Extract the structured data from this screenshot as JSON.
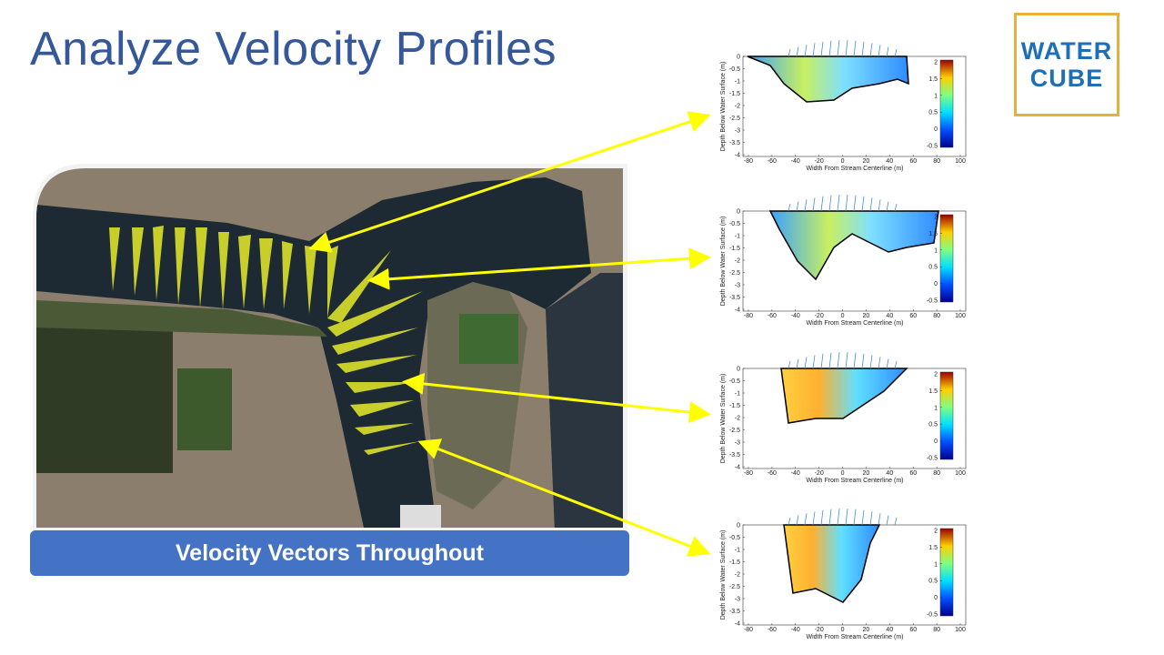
{
  "header": {
    "title": "Analyze Velocity Profiles"
  },
  "image_caption": "Velocity Vectors Throughout",
  "logo": {
    "lines": [
      "WATER",
      "CUBE"
    ]
  },
  "profiles": {
    "y_label": "Depth Below Water Surface (m)",
    "x_label": "Width From Stream Centerline (m)",
    "xticks": [
      -80,
      -60,
      -40,
      -20,
      0,
      20,
      40,
      60,
      80,
      100
    ],
    "yticks": [
      0,
      -0.5,
      -1,
      -1.5,
      -2,
      -2.5,
      -3,
      -3.5,
      -4
    ],
    "colorbar_ticks": [
      2,
      1.5,
      1,
      0.5,
      0,
      -0.5
    ]
  }
}
